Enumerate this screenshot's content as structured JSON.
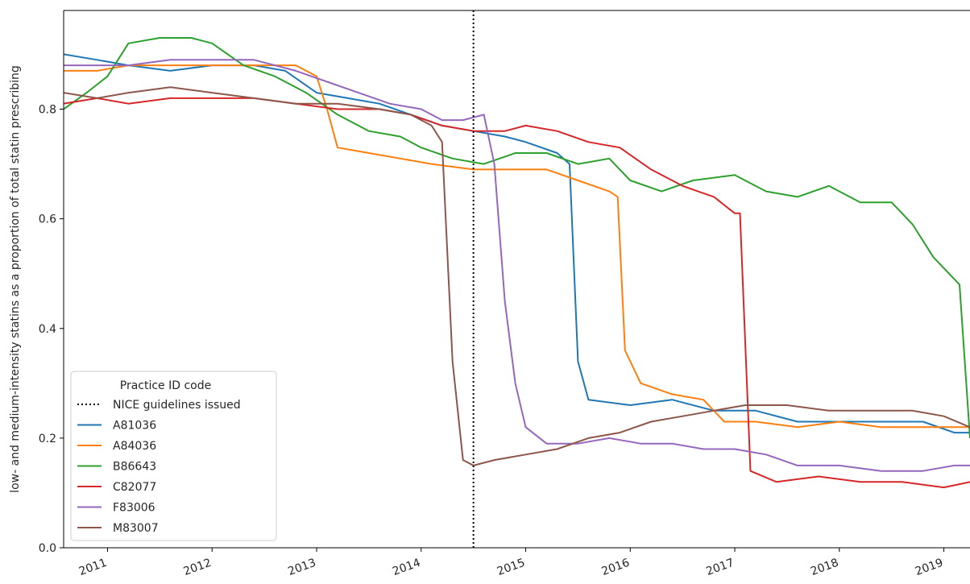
{
  "chart_data": {
    "type": "line",
    "title": "",
    "xlabel": "",
    "ylabel": "low- and medium-intensity statins as a proportion of total statin prescribing",
    "xlim": [
      2010.58,
      2019.25
    ],
    "ylim": [
      0.0,
      0.98
    ],
    "x_ticks": [
      2011,
      2012,
      2013,
      2014,
      2015,
      2016,
      2017,
      2018,
      2019
    ],
    "x_tick_labels": [
      "2011",
      "2012",
      "2013",
      "2014",
      "2015",
      "2016",
      "2017",
      "2018",
      "2019"
    ],
    "y_ticks": [
      0.0,
      0.2,
      0.4,
      0.6,
      0.8
    ],
    "y_tick_labels": [
      "0.0",
      "0.2",
      "0.4",
      "0.6",
      "0.8"
    ],
    "grid": false,
    "legend": {
      "title": "Practice ID code",
      "placement": "lower-left"
    },
    "annotations": [
      {
        "type": "vline",
        "x": 2014.5,
        "style": "dotted",
        "color": "#000000",
        "label": "NICE guidelines issued"
      }
    ],
    "series": [
      {
        "name": "A81036",
        "color": "#1f77b4",
        "points": [
          [
            2010.58,
            0.9
          ],
          [
            2010.9,
            0.89
          ],
          [
            2011.2,
            0.88
          ],
          [
            2011.6,
            0.87
          ],
          [
            2012.0,
            0.88
          ],
          [
            2012.4,
            0.88
          ],
          [
            2012.7,
            0.87
          ],
          [
            2013.0,
            0.83
          ],
          [
            2013.3,
            0.82
          ],
          [
            2013.6,
            0.81
          ],
          [
            2013.9,
            0.79
          ],
          [
            2014.2,
            0.77
          ],
          [
            2014.5,
            0.76
          ],
          [
            2014.8,
            0.75
          ],
          [
            2015.0,
            0.74
          ],
          [
            2015.3,
            0.72
          ],
          [
            2015.42,
            0.7
          ],
          [
            2015.5,
            0.34
          ],
          [
            2015.6,
            0.27
          ],
          [
            2016.0,
            0.26
          ],
          [
            2016.4,
            0.27
          ],
          [
            2016.8,
            0.25
          ],
          [
            2017.2,
            0.25
          ],
          [
            2017.6,
            0.23
          ],
          [
            2018.0,
            0.23
          ],
          [
            2018.4,
            0.23
          ],
          [
            2018.8,
            0.23
          ],
          [
            2019.1,
            0.21
          ],
          [
            2019.25,
            0.21
          ]
        ]
      },
      {
        "name": "A84036",
        "color": "#ff7f0e",
        "points": [
          [
            2010.58,
            0.87
          ],
          [
            2010.9,
            0.87
          ],
          [
            2011.2,
            0.88
          ],
          [
            2011.6,
            0.88
          ],
          [
            2012.0,
            0.88
          ],
          [
            2012.4,
            0.88
          ],
          [
            2012.8,
            0.88
          ],
          [
            2013.0,
            0.86
          ],
          [
            2013.1,
            0.8
          ],
          [
            2013.2,
            0.73
          ],
          [
            2013.5,
            0.72
          ],
          [
            2013.8,
            0.71
          ],
          [
            2014.1,
            0.7
          ],
          [
            2014.5,
            0.69
          ],
          [
            2014.9,
            0.69
          ],
          [
            2015.2,
            0.69
          ],
          [
            2015.5,
            0.67
          ],
          [
            2015.8,
            0.65
          ],
          [
            2015.88,
            0.64
          ],
          [
            2015.95,
            0.36
          ],
          [
            2016.1,
            0.3
          ],
          [
            2016.4,
            0.28
          ],
          [
            2016.7,
            0.27
          ],
          [
            2016.9,
            0.23
          ],
          [
            2017.2,
            0.23
          ],
          [
            2017.6,
            0.22
          ],
          [
            2018.0,
            0.23
          ],
          [
            2018.4,
            0.22
          ],
          [
            2018.8,
            0.22
          ],
          [
            2019.25,
            0.22
          ]
        ]
      },
      {
        "name": "B86643",
        "color": "#2ca02c",
        "points": [
          [
            2010.58,
            0.8
          ],
          [
            2010.8,
            0.83
          ],
          [
            2011.0,
            0.86
          ],
          [
            2011.2,
            0.92
          ],
          [
            2011.5,
            0.93
          ],
          [
            2011.8,
            0.93
          ],
          [
            2012.0,
            0.92
          ],
          [
            2012.3,
            0.88
          ],
          [
            2012.6,
            0.86
          ],
          [
            2012.9,
            0.83
          ],
          [
            2013.2,
            0.79
          ],
          [
            2013.5,
            0.76
          ],
          [
            2013.8,
            0.75
          ],
          [
            2014.0,
            0.73
          ],
          [
            2014.3,
            0.71
          ],
          [
            2014.6,
            0.7
          ],
          [
            2014.9,
            0.72
          ],
          [
            2015.2,
            0.72
          ],
          [
            2015.5,
            0.7
          ],
          [
            2015.8,
            0.71
          ],
          [
            2016.0,
            0.67
          ],
          [
            2016.3,
            0.65
          ],
          [
            2016.6,
            0.67
          ],
          [
            2017.0,
            0.68
          ],
          [
            2017.3,
            0.65
          ],
          [
            2017.6,
            0.64
          ],
          [
            2017.9,
            0.66
          ],
          [
            2018.2,
            0.63
          ],
          [
            2018.5,
            0.63
          ],
          [
            2018.7,
            0.59
          ],
          [
            2018.9,
            0.53
          ],
          [
            2019.05,
            0.5
          ],
          [
            2019.15,
            0.48
          ],
          [
            2019.25,
            0.2
          ]
        ]
      },
      {
        "name": "C82077",
        "color": "#d62728",
        "points": [
          [
            2010.58,
            0.81
          ],
          [
            2010.9,
            0.82
          ],
          [
            2011.2,
            0.81
          ],
          [
            2011.6,
            0.82
          ],
          [
            2012.0,
            0.82
          ],
          [
            2012.4,
            0.82
          ],
          [
            2012.8,
            0.81
          ],
          [
            2013.2,
            0.8
          ],
          [
            2013.6,
            0.8
          ],
          [
            2013.9,
            0.79
          ],
          [
            2014.2,
            0.77
          ],
          [
            2014.5,
            0.76
          ],
          [
            2014.8,
            0.76
          ],
          [
            2015.0,
            0.77
          ],
          [
            2015.3,
            0.76
          ],
          [
            2015.6,
            0.74
          ],
          [
            2015.9,
            0.73
          ],
          [
            2016.2,
            0.69
          ],
          [
            2016.5,
            0.66
          ],
          [
            2016.8,
            0.64
          ],
          [
            2017.0,
            0.61
          ],
          [
            2017.05,
            0.61
          ],
          [
            2017.15,
            0.14
          ],
          [
            2017.4,
            0.12
          ],
          [
            2017.8,
            0.13
          ],
          [
            2018.2,
            0.12
          ],
          [
            2018.6,
            0.12
          ],
          [
            2019.0,
            0.11
          ],
          [
            2019.25,
            0.12
          ]
        ]
      },
      {
        "name": "F83006",
        "color": "#9467bd",
        "points": [
          [
            2010.58,
            0.88
          ],
          [
            2010.9,
            0.88
          ],
          [
            2011.2,
            0.88
          ],
          [
            2011.6,
            0.89
          ],
          [
            2012.0,
            0.89
          ],
          [
            2012.4,
            0.89
          ],
          [
            2012.8,
            0.87
          ],
          [
            2013.1,
            0.85
          ],
          [
            2013.4,
            0.83
          ],
          [
            2013.7,
            0.81
          ],
          [
            2014.0,
            0.8
          ],
          [
            2014.2,
            0.78
          ],
          [
            2014.4,
            0.78
          ],
          [
            2014.6,
            0.79
          ],
          [
            2014.7,
            0.7
          ],
          [
            2014.8,
            0.45
          ],
          [
            2014.9,
            0.3
          ],
          [
            2015.0,
            0.22
          ],
          [
            2015.2,
            0.19
          ],
          [
            2015.5,
            0.19
          ],
          [
            2015.8,
            0.2
          ],
          [
            2016.1,
            0.19
          ],
          [
            2016.4,
            0.19
          ],
          [
            2016.7,
            0.18
          ],
          [
            2017.0,
            0.18
          ],
          [
            2017.3,
            0.17
          ],
          [
            2017.6,
            0.15
          ],
          [
            2018.0,
            0.15
          ],
          [
            2018.4,
            0.14
          ],
          [
            2018.8,
            0.14
          ],
          [
            2019.1,
            0.15
          ],
          [
            2019.25,
            0.15
          ]
        ]
      },
      {
        "name": "M83007",
        "color": "#8c564b",
        "points": [
          [
            2010.58,
            0.83
          ],
          [
            2010.9,
            0.82
          ],
          [
            2011.2,
            0.83
          ],
          [
            2011.6,
            0.84
          ],
          [
            2012.0,
            0.83
          ],
          [
            2012.4,
            0.82
          ],
          [
            2012.8,
            0.81
          ],
          [
            2013.2,
            0.81
          ],
          [
            2013.6,
            0.8
          ],
          [
            2013.9,
            0.79
          ],
          [
            2014.1,
            0.77
          ],
          [
            2014.2,
            0.74
          ],
          [
            2014.3,
            0.34
          ],
          [
            2014.4,
            0.16
          ],
          [
            2014.5,
            0.15
          ],
          [
            2014.7,
            0.16
          ],
          [
            2015.0,
            0.17
          ],
          [
            2015.3,
            0.18
          ],
          [
            2015.6,
            0.2
          ],
          [
            2015.9,
            0.21
          ],
          [
            2016.2,
            0.23
          ],
          [
            2016.5,
            0.24
          ],
          [
            2016.8,
            0.25
          ],
          [
            2017.1,
            0.26
          ],
          [
            2017.5,
            0.26
          ],
          [
            2017.9,
            0.25
          ],
          [
            2018.3,
            0.25
          ],
          [
            2018.7,
            0.25
          ],
          [
            2019.0,
            0.24
          ],
          [
            2019.25,
            0.22
          ]
        ]
      }
    ]
  }
}
